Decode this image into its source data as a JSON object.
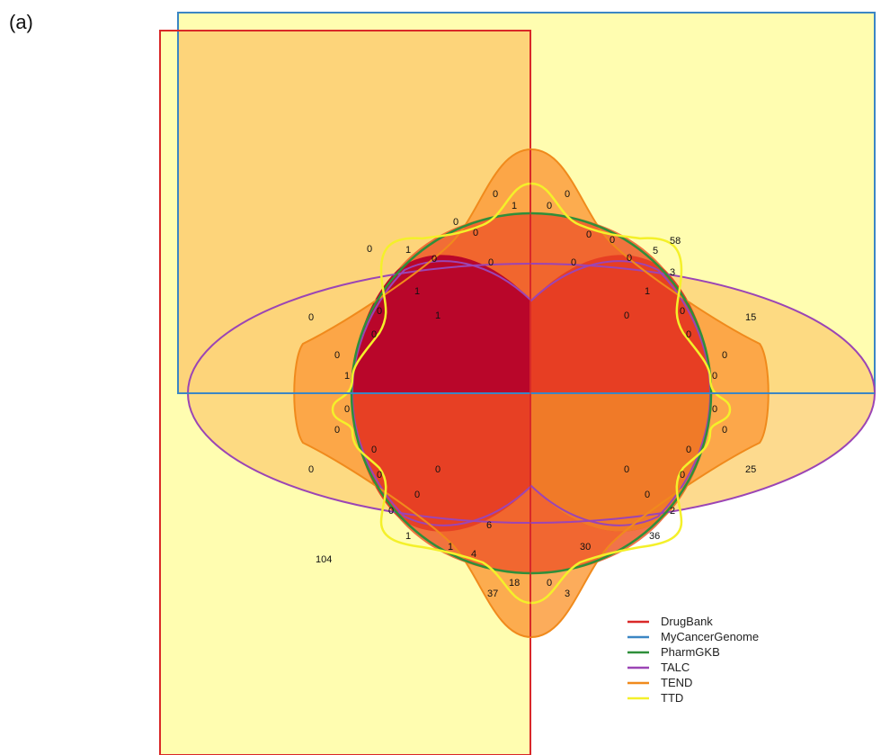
{
  "panel_label": "(a)",
  "legend": [
    {
      "name": "DrugBank",
      "color": "#d92828"
    },
    {
      "name": "MyCancerGenome",
      "color": "#3b86c4"
    },
    {
      "name": "PharmGKB",
      "color": "#2f8f3a"
    },
    {
      "name": "TALC",
      "color": "#9b45b5"
    },
    {
      "name": "TEND",
      "color": "#f08a1c"
    },
    {
      "name": "TTD",
      "color": "#f4f02a"
    }
  ],
  "region_counts": [
    "0",
    "1",
    "0",
    "0",
    "0",
    "0",
    "0",
    "0",
    "58",
    "0",
    "1",
    "0",
    "0",
    "5",
    "0",
    "0",
    "3",
    "1",
    "1",
    "1",
    "0",
    "0",
    "15",
    "0",
    "0",
    "0",
    "0",
    "0",
    "1",
    "0",
    "0",
    "0",
    "0",
    "0",
    "0",
    "0",
    "0",
    "0",
    "25",
    "0",
    "0",
    "0",
    "0",
    "2",
    "0",
    "1",
    "0",
    "0",
    "36",
    "1",
    "4",
    "6",
    "30",
    "37",
    "18",
    "0",
    "3",
    "104"
  ]
}
